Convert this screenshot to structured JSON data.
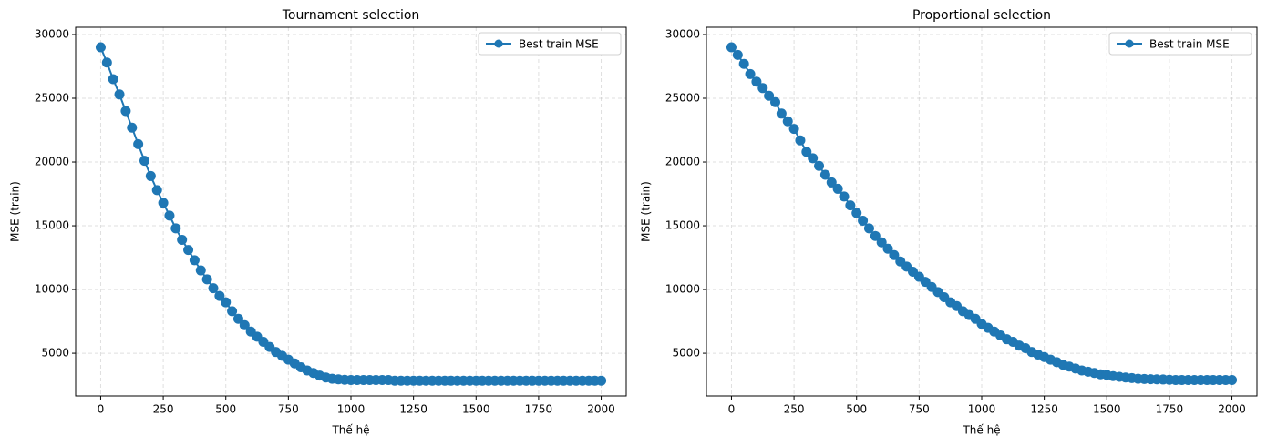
{
  "chart_data": [
    {
      "type": "line",
      "title": "Tournament selection",
      "xlabel": "Thế hệ",
      "ylabel": "MSE (train)",
      "x": [
        0,
        25,
        50,
        75,
        100,
        125,
        150,
        175,
        200,
        225,
        250,
        275,
        300,
        325,
        350,
        375,
        400,
        425,
        450,
        475,
        500,
        525,
        550,
        575,
        600,
        625,
        650,
        675,
        700,
        725,
        750,
        775,
        800,
        825,
        850,
        875,
        900,
        925,
        950,
        975,
        1000,
        1025,
        1050,
        1075,
        1100,
        1125,
        1150,
        1175,
        1200,
        1225,
        1250,
        1275,
        1300,
        1325,
        1350,
        1375,
        1400,
        1425,
        1450,
        1475,
        1500,
        1525,
        1550,
        1575,
        1600,
        1625,
        1650,
        1675,
        1700,
        1725,
        1750,
        1775,
        1800,
        1825,
        1850,
        1875,
        1900,
        1925,
        1950,
        1975,
        2000
      ],
      "series": [
        {
          "name": "Best train MSE",
          "color": "#1f77b4",
          "values": [
            29000,
            27800,
            26500,
            25300,
            24000,
            22700,
            21400,
            20100,
            18900,
            17800,
            16800,
            15800,
            14800,
            13900,
            13100,
            12300,
            11500,
            10800,
            10100,
            9500,
            9000,
            8300,
            7700,
            7200,
            6700,
            6300,
            5900,
            5500,
            5100,
            4800,
            4500,
            4200,
            3900,
            3650,
            3450,
            3250,
            3100,
            3000,
            2950,
            2920,
            2900,
            2900,
            2900,
            2900,
            2900,
            2900,
            2900,
            2850,
            2850,
            2850,
            2850,
            2850,
            2850,
            2850,
            2850,
            2850,
            2850,
            2850,
            2850,
            2850,
            2850,
            2850,
            2850,
            2850,
            2850,
            2850,
            2850,
            2850,
            2850,
            2850,
            2850,
            2850,
            2850,
            2850,
            2850,
            2850,
            2850,
            2850,
            2850,
            2850,
            2850
          ]
        }
      ],
      "xlim": [
        -100,
        2100
      ],
      "ylim": [
        1650,
        30570
      ],
      "xticks": [
        0,
        250,
        500,
        750,
        1000,
        1250,
        1500,
        1750,
        2000
      ],
      "yticks": [
        5000,
        10000,
        15000,
        20000,
        25000,
        30000
      ],
      "grid": true,
      "legend": "upper right"
    },
    {
      "type": "line",
      "title": "Proportional selection",
      "xlabel": "Thế hệ",
      "ylabel": "MSE (train)",
      "x": [
        0,
        25,
        50,
        75,
        100,
        125,
        150,
        175,
        200,
        225,
        250,
        275,
        300,
        325,
        350,
        375,
        400,
        425,
        450,
        475,
        500,
        525,
        550,
        575,
        600,
        625,
        650,
        675,
        700,
        725,
        750,
        775,
        800,
        825,
        850,
        875,
        900,
        925,
        950,
        975,
        1000,
        1025,
        1050,
        1075,
        1100,
        1125,
        1150,
        1175,
        1200,
        1225,
        1250,
        1275,
        1300,
        1325,
        1350,
        1375,
        1400,
        1425,
        1450,
        1475,
        1500,
        1525,
        1550,
        1575,
        1600,
        1625,
        1650,
        1675,
        1700,
        1725,
        1750,
        1775,
        1800,
        1825,
        1850,
        1875,
        1900,
        1925,
        1950,
        1975,
        2000
      ],
      "series": [
        {
          "name": "Best train MSE",
          "color": "#1f77b4",
          "values": [
            29000,
            28400,
            27700,
            26900,
            26300,
            25800,
            25200,
            24700,
            23800,
            23200,
            22600,
            21700,
            20800,
            20300,
            19700,
            19000,
            18400,
            17900,
            17300,
            16600,
            16000,
            15400,
            14800,
            14200,
            13700,
            13200,
            12700,
            12200,
            11800,
            11400,
            11000,
            10600,
            10200,
            9800,
            9400,
            9000,
            8700,
            8300,
            8000,
            7700,
            7300,
            7000,
            6700,
            6400,
            6100,
            5900,
            5600,
            5400,
            5100,
            4900,
            4700,
            4500,
            4300,
            4100,
            3950,
            3800,
            3650,
            3550,
            3450,
            3350,
            3300,
            3200,
            3150,
            3100,
            3050,
            3000,
            2980,
            2960,
            2950,
            2940,
            2920,
            2900,
            2900,
            2900,
            2900,
            2900,
            2900,
            2900,
            2900,
            2900,
            2900
          ]
        }
      ],
      "xlim": [
        -100,
        2100
      ],
      "ylim": [
        1650,
        30570
      ],
      "xticks": [
        0,
        250,
        500,
        750,
        1000,
        1250,
        1500,
        1750,
        2000
      ],
      "yticks": [
        5000,
        10000,
        15000,
        20000,
        25000,
        30000
      ],
      "grid": true,
      "legend": "upper right"
    }
  ]
}
